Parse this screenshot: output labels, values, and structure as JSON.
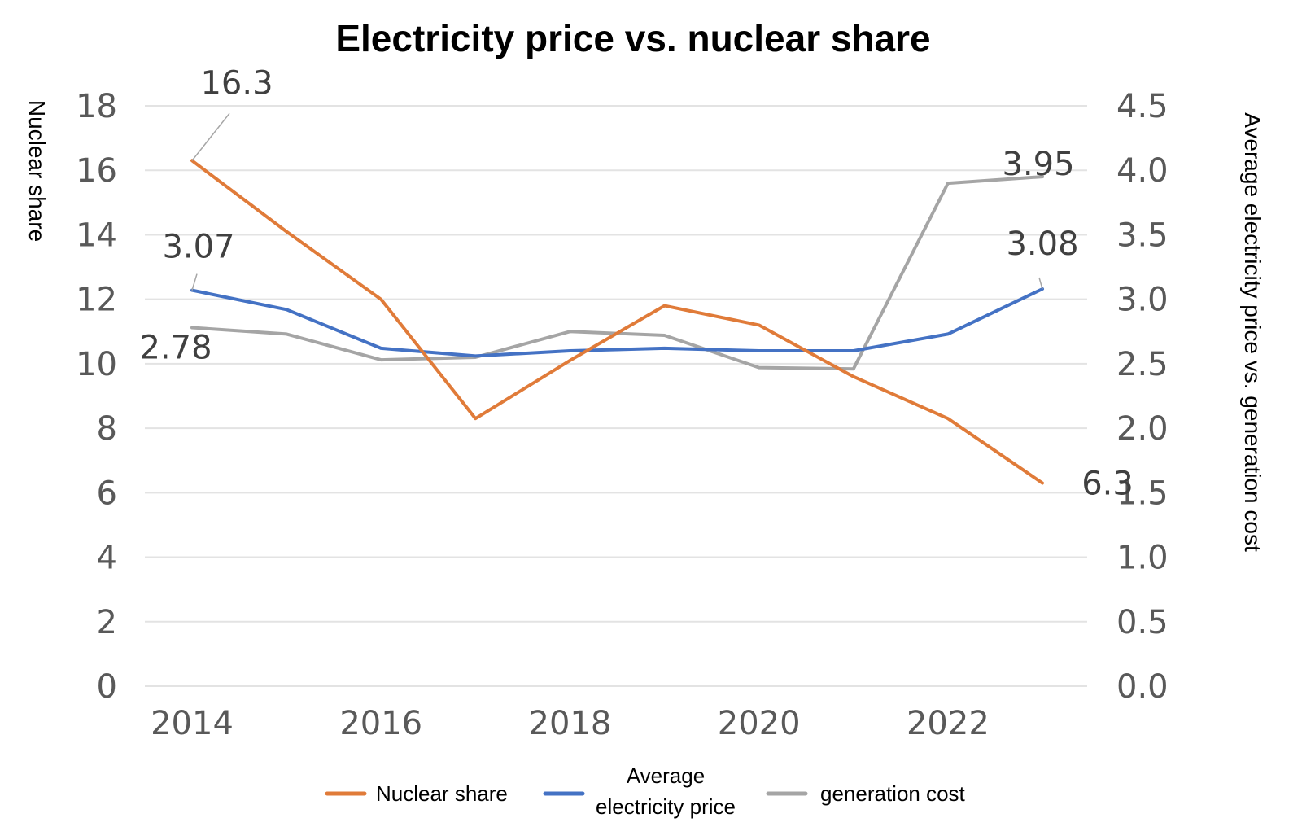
{
  "chart_data": {
    "type": "line",
    "title": "Electricity price vs. nuclear share",
    "ylabel_left": "Nuclear share",
    "ylabel_right": "Average electricity price vs. generation cost",
    "x": [
      2014,
      2015,
      2016,
      2017,
      2018,
      2019,
      2020,
      2021,
      2022,
      2023
    ],
    "x_ticks": [
      "2014",
      "2016",
      "2018",
      "2020",
      "2022"
    ],
    "ylim_left": [
      0,
      18
    ],
    "yticks_left": [
      "0",
      "2",
      "4",
      "6",
      "8",
      "10",
      "12",
      "14",
      "16",
      "18"
    ],
    "ylim_right": [
      0,
      4.5
    ],
    "yticks_right": [
      "0.0",
      "0.5",
      "1.0",
      "1.5",
      "2.0",
      "2.5",
      "3.0",
      "3.5",
      "4.0",
      "4.5"
    ],
    "grid": true,
    "legend_position": "bottom",
    "series": [
      {
        "name": "Nuclear share",
        "axis": "left",
        "color": "#e07b39",
        "values": [
          16.3,
          14.1,
          12.0,
          8.3,
          10.1,
          11.8,
          11.2,
          9.6,
          8.3,
          6.3
        ]
      },
      {
        "name": "Average electricity price",
        "axis": "right",
        "color": "#4472c4",
        "values": [
          3.07,
          2.92,
          2.62,
          2.56,
          2.6,
          2.62,
          2.6,
          2.6,
          2.73,
          3.08
        ]
      },
      {
        "name": "generation cost",
        "axis": "right",
        "color": "#a5a5a5",
        "values": [
          2.78,
          2.73,
          2.53,
          2.55,
          2.75,
          2.72,
          2.47,
          2.46,
          3.9,
          3.95
        ]
      }
    ],
    "data_labels": [
      {
        "series": 0,
        "index": 0,
        "text": "16.3"
      },
      {
        "series": 0,
        "index": 9,
        "text": "6.3"
      },
      {
        "series": 1,
        "index": 0,
        "text": "3.07"
      },
      {
        "series": 1,
        "index": 9,
        "text": "3.08"
      },
      {
        "series": 2,
        "index": 0,
        "text": "2.78"
      },
      {
        "series": 2,
        "index": 9,
        "text": "3.95"
      }
    ],
    "legend": [
      {
        "line1": "Nuclear share",
        "line2": ""
      },
      {
        "line1": "Average",
        "line2": "electricity price"
      },
      {
        "line1": "generation cost",
        "line2": ""
      }
    ]
  }
}
